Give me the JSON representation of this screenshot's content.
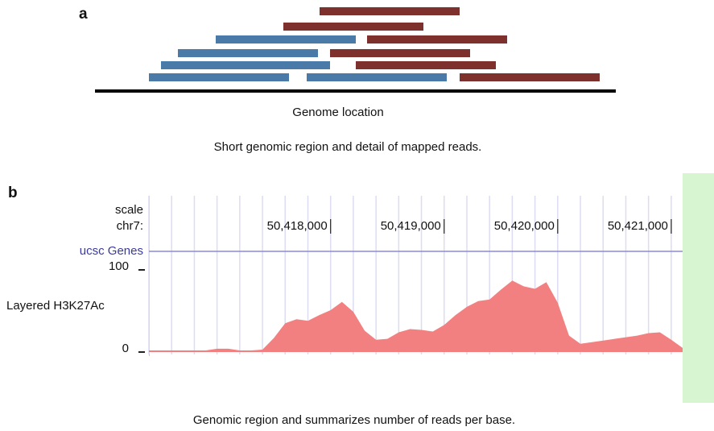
{
  "panel_a": {
    "label": "a",
    "axis_label": "Genome location",
    "caption": "Short genomic region and detail of mapped reads."
  },
  "panel_b": {
    "label": "b",
    "caption": "Genomic region and summarizes number of reads per base."
  },
  "chart_data": {
    "type": "area",
    "scale_label": "scale",
    "chrom_label": "chr7:",
    "track_name": "ucsc Genes",
    "y_label": "Layered H3K27Ac",
    "color": "#f38080",
    "grid": true,
    "x": [
      50416400,
      50416500,
      50416600,
      50416700,
      50416800,
      50416900,
      50417000,
      50417100,
      50417200,
      50417300,
      50417400,
      50417500,
      50417600,
      50417700,
      50417800,
      50417900,
      50418000,
      50418100,
      50418200,
      50418300,
      50418400,
      50418500,
      50418600,
      50418700,
      50418800,
      50418900,
      50419000,
      50419100,
      50419200,
      50419300,
      50419400,
      50419500,
      50419600,
      50419700,
      50419800,
      50419900,
      50420000,
      50420100,
      50420200,
      50420300,
      50420400,
      50420500,
      50420600,
      50420700,
      50420800,
      50420900,
      50421000,
      50421100
    ],
    "values": [
      2,
      2,
      2,
      2,
      2,
      2,
      4,
      4,
      2,
      2,
      3,
      17,
      35,
      40,
      38,
      45,
      51,
      61,
      49,
      26,
      15,
      16,
      24,
      28,
      27,
      25,
      33,
      45,
      55,
      62,
      64,
      76,
      87,
      80,
      77,
      85,
      60,
      20,
      10,
      12,
      14,
      16,
      18,
      20,
      23,
      24,
      15,
      5
    ],
    "xlim": [
      50416400,
      50421100
    ],
    "xticks": [
      {
        "value": 50418000,
        "label": "50,418,000"
      },
      {
        "value": 50419000,
        "label": "50,419,000"
      },
      {
        "value": 50420000,
        "label": "50,420,000"
      },
      {
        "value": 50421000,
        "label": "50,421,000"
      }
    ],
    "ylim": [
      0,
      100
    ],
    "yticks": [
      0,
      100
    ]
  }
}
